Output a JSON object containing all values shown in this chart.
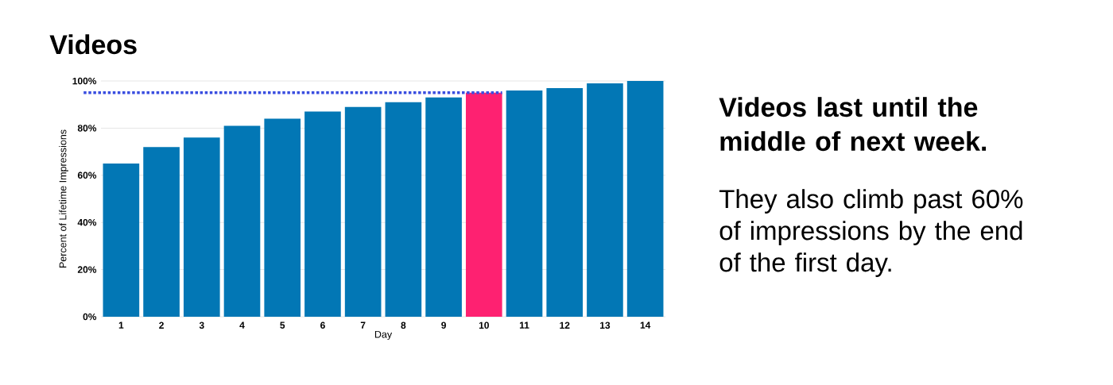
{
  "chart_data": {
    "type": "bar",
    "title": "Videos",
    "categories": [
      "1",
      "2",
      "3",
      "4",
      "5",
      "6",
      "7",
      "8",
      "9",
      "10",
      "11",
      "12",
      "13",
      "14"
    ],
    "values": [
      65,
      72,
      76,
      81,
      84,
      87,
      89,
      91,
      93,
      95,
      96,
      97,
      99,
      100
    ],
    "colors": [
      "#0277b5",
      "#0277b5",
      "#0277b5",
      "#0277b5",
      "#0277b5",
      "#0277b5",
      "#0277b5",
      "#0277b5",
      "#0277b5",
      "#fe2171",
      "#0277b5",
      "#0277b5",
      "#0277b5",
      "#0277b5"
    ],
    "xlabel": "Day",
    "ylabel": "Percent of Lifetime Impressions",
    "ylim": [
      0,
      100
    ],
    "yticks": [
      {
        "value": 0,
        "label": "0%"
      },
      {
        "value": 20,
        "label": "20%"
      },
      {
        "value": 40,
        "label": "40%"
      },
      {
        "value": 60,
        "label": "60%"
      },
      {
        "value": 80,
        "label": "80%"
      },
      {
        "value": 100,
        "label": "100%"
      }
    ],
    "grid": "y",
    "ref_lines": [
      {
        "axis": "y",
        "value": 95,
        "color": "#3a4ee0",
        "line_style": "dotted"
      }
    ],
    "annotations": [
      "Videos last until the middle of next week.",
      "They also climb past 60% of impressions by the end of the first day."
    ]
  }
}
